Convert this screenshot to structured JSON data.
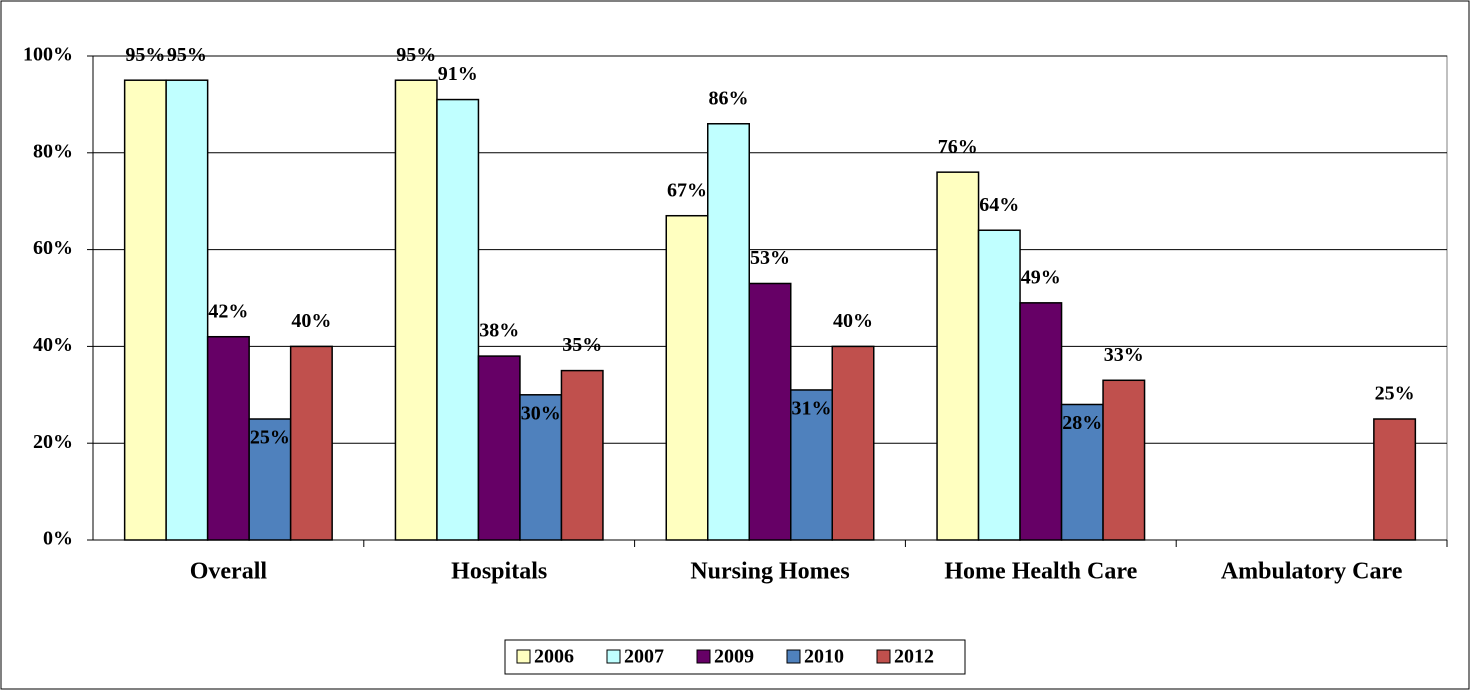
{
  "chart_data": {
    "type": "bar",
    "categories": [
      "Overall",
      "Hospitals",
      "Nursing Homes",
      "Home Health Care",
      "Ambulatory Care"
    ],
    "series": [
      {
        "name": "2006",
        "color": "#ffffc0",
        "values": [
          95,
          95,
          67,
          76,
          null
        ],
        "value_labels": [
          "95%",
          "95%",
          "67%",
          "76%",
          null
        ]
      },
      {
        "name": "2007",
        "color": "#c0ffff",
        "values": [
          95,
          91,
          86,
          64,
          null
        ],
        "value_labels": [
          "95%",
          "91%",
          "86%",
          "64%",
          null
        ]
      },
      {
        "name": "2009",
        "color": "#660066",
        "values": [
          42,
          38,
          53,
          49,
          null
        ],
        "value_labels": [
          "42%",
          "38%",
          "53%",
          "49%",
          null
        ]
      },
      {
        "name": "2010",
        "color": "#4f81bd",
        "values": [
          25,
          30,
          31,
          28,
          null
        ],
        "value_labels": [
          "25%",
          "30%",
          "31%",
          "28%",
          null
        ]
      },
      {
        "name": "2012",
        "color": "#c0504d",
        "values": [
          40,
          35,
          40,
          33,
          25
        ],
        "value_labels": [
          "40%",
          "35%",
          "40%",
          "33%",
          "25%"
        ]
      }
    ],
    "ylim": [
      0,
      100
    ],
    "yticks": [
      {
        "value": 0,
        "label": "0%"
      },
      {
        "value": 20,
        "label": "20%"
      },
      {
        "value": 40,
        "label": "40%"
      },
      {
        "value": 60,
        "label": "60%"
      },
      {
        "value": 80,
        "label": "80%"
      },
      {
        "value": 100,
        "label": "100%"
      }
    ],
    "grid": true,
    "legend": "bottom"
  }
}
